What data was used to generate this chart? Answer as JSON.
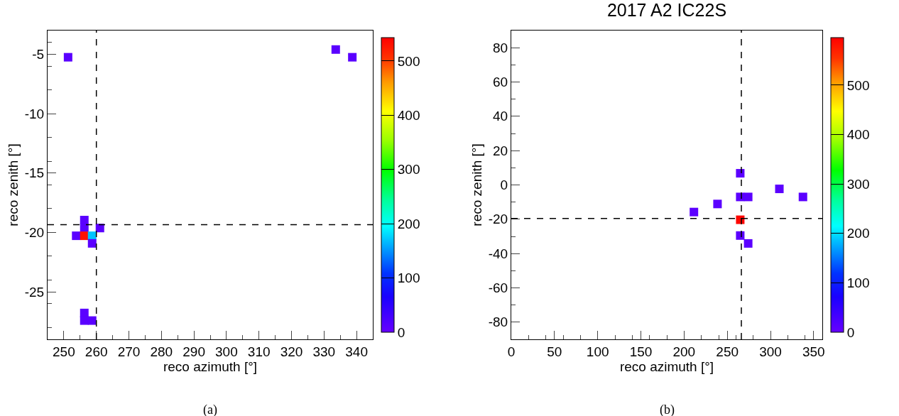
{
  "chart_data": [
    {
      "type": "scatter",
      "xlabel": "reco azimuth [°]",
      "ylabel": "reco zenith [°]",
      "annotations": [
        "(a)"
      ],
      "marker": "square",
      "grid": false,
      "x": [
        251.3,
        333.6,
        338.7,
        256.3,
        256.3,
        261.1,
        253.8,
        256.3,
        258.7,
        258.7,
        256.3,
        256.3,
        258.7
      ],
      "values": [
        -5.25,
        -4.6,
        -5.25,
        -18.96,
        -19.63,
        -19.63,
        -20.28,
        -20.28,
        -20.28,
        -20.92,
        -26.78,
        -27.42,
        -27.42
      ],
      "cvalues": [
        10,
        10,
        10,
        10,
        10,
        10,
        10,
        530,
        170,
        10,
        10,
        10,
        10
      ],
      "xlim": [
        245,
        345
      ],
      "xticks": [
        250,
        260,
        270,
        280,
        290,
        300,
        310,
        320,
        330,
        340
      ],
      "ylim": [
        -29,
        -3
      ],
      "yticks": [
        -25,
        -20,
        -15,
        -10,
        -5
      ],
      "clim": [
        0,
        543
      ],
      "cticks": [
        0,
        100,
        200,
        300,
        400,
        500
      ],
      "ref_lines": [
        {
          "axis": "x",
          "value": 260,
          "line_style": "dashed",
          "color": "#000000"
        },
        {
          "axis": "y",
          "value": -19.35,
          "line_style": "dashed",
          "color": "#000000"
        }
      ]
    },
    {
      "type": "scatter",
      "title": "2017 A2 IC22S",
      "xlabel": "reco azimuth [°]",
      "ylabel": "reco zenith [°]",
      "annotations": [
        "(b)"
      ],
      "marker": "square",
      "grid": false,
      "x": [
        265,
        265,
        274.2,
        211.4,
        238.7,
        310.3,
        337.6,
        265,
        265,
        274.2
      ],
      "values": [
        6.8,
        -7,
        -7,
        -15.8,
        -11.1,
        -2.3,
        -7,
        -20.3,
        -29.5,
        -34.1
      ],
      "cvalues": [
        10,
        10,
        10,
        10,
        10,
        10,
        10,
        590,
        10,
        10
      ],
      "xlim": [
        0,
        360
      ],
      "xticks": [
        0,
        50,
        100,
        150,
        200,
        250,
        300,
        350
      ],
      "ylim": [
        -90,
        90
      ],
      "yticks": [
        -80,
        -60,
        -40,
        -20,
        0,
        20,
        40,
        60,
        80
      ],
      "clim": [
        0,
        596
      ],
      "cticks": [
        0,
        100,
        200,
        300,
        400,
        500
      ],
      "ref_lines": [
        {
          "axis": "x",
          "value": 266.3,
          "line_style": "dashed",
          "color": "#000000"
        },
        {
          "axis": "y",
          "value": -19.5,
          "line_style": "dashed",
          "color": "#000000"
        }
      ]
    }
  ]
}
